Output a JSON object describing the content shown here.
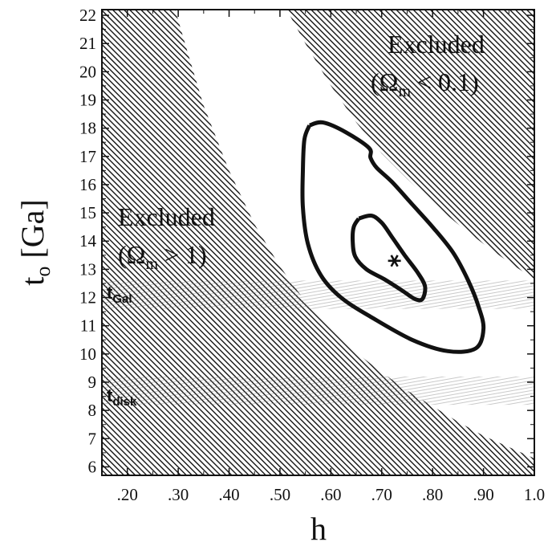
{
  "chart_data": {
    "type": "contour",
    "xlabel": "h",
    "ylabel_main": "t",
    "ylabel_sub": "o",
    "ylabel_unit": "[Ga]",
    "xlim": [
      0.15,
      1.0
    ],
    "ylim": [
      5.7,
      22.2
    ],
    "x_ticks": [
      {
        "value": 0.2,
        "label": ".20"
      },
      {
        "value": 0.3,
        "label": ".30"
      },
      {
        "value": 0.4,
        "label": ".40"
      },
      {
        "value": 0.5,
        "label": ".50"
      },
      {
        "value": 0.6,
        "label": ".60"
      },
      {
        "value": 0.7,
        "label": ".70"
      },
      {
        "value": 0.8,
        "label": ".80"
      },
      {
        "value": 0.9,
        "label": ".90"
      },
      {
        "value": 1.0,
        "label": "1.0"
      }
    ],
    "y_ticks": [
      {
        "value": 6,
        "label": "6"
      },
      {
        "value": 7,
        "label": "7"
      },
      {
        "value": 8,
        "label": "8"
      },
      {
        "value": 9,
        "label": "9"
      },
      {
        "value": 10,
        "label": "10"
      },
      {
        "value": 11,
        "label": "11"
      },
      {
        "value": 12,
        "label": "12"
      },
      {
        "value": 13,
        "label": "13"
      },
      {
        "value": 14,
        "label": "14"
      },
      {
        "value": 15,
        "label": "15"
      },
      {
        "value": 16,
        "label": "16"
      },
      {
        "value": 17,
        "label": "17"
      },
      {
        "value": 18,
        "label": "18"
      },
      {
        "value": 19,
        "label": "19"
      },
      {
        "value": 20,
        "label": "20"
      },
      {
        "value": 21,
        "label": "21"
      },
      {
        "value": 22,
        "label": "22"
      }
    ],
    "excluded_high_omega": {
      "label_word": "Excluded",
      "label_open": "(Ω",
      "label_sub": "m",
      "label_rel": " > 1)",
      "boundary": [
        [
          0.294,
          22.2
        ],
        [
          0.32,
          20.6
        ],
        [
          0.35,
          18.8
        ],
        [
          0.4,
          16.5
        ],
        [
          0.45,
          14.6
        ],
        [
          0.5,
          13.1
        ],
        [
          0.55,
          11.85
        ],
        [
          0.6,
          10.9
        ],
        [
          0.65,
          10.05
        ],
        [
          0.7,
          9.35
        ],
        [
          0.75,
          8.7
        ],
        [
          0.8,
          8.15
        ],
        [
          0.85,
          7.6
        ],
        [
          0.9,
          7.1
        ],
        [
          0.95,
          6.7
        ],
        [
          1.0,
          6.3
        ]
      ]
    },
    "excluded_low_omega": {
      "label_word": "Excluded",
      "label_open": "(Ω",
      "label_sub": "m",
      "label_rel": " < 0.1)",
      "boundary": [
        [
          0.513,
          22.2
        ],
        [
          0.55,
          21.0
        ],
        [
          0.6,
          19.5
        ],
        [
          0.65,
          18.2
        ],
        [
          0.7,
          17.1
        ],
        [
          0.75,
          16.2
        ],
        [
          0.8,
          15.35
        ],
        [
          0.85,
          14.6
        ],
        [
          0.9,
          13.9
        ],
        [
          0.95,
          13.25
        ],
        [
          1.0,
          12.65
        ]
      ]
    },
    "outer_contour": [
      [
        0.558,
        18.1
      ],
      [
        0.585,
        18.2
      ],
      [
        0.63,
        17.85
      ],
      [
        0.675,
        17.3
      ],
      [
        0.678,
        16.95
      ],
      [
        0.69,
        16.6
      ],
      [
        0.72,
        16.1
      ],
      [
        0.76,
        15.3
      ],
      [
        0.8,
        14.5
      ],
      [
        0.84,
        13.6
      ],
      [
        0.87,
        12.6
      ],
      [
        0.89,
        11.7
      ],
      [
        0.9,
        10.9
      ],
      [
        0.885,
        10.2
      ],
      [
        0.83,
        10.1
      ],
      [
        0.76,
        10.5
      ],
      [
        0.68,
        11.3
      ],
      [
        0.62,
        12.0
      ],
      [
        0.58,
        12.8
      ],
      [
        0.555,
        13.9
      ],
      [
        0.545,
        15.2
      ],
      [
        0.545,
        16.5
      ],
      [
        0.548,
        17.6
      ],
      [
        0.558,
        18.1
      ]
    ],
    "inner_contour": [
      [
        0.655,
        14.8
      ],
      [
        0.68,
        14.9
      ],
      [
        0.7,
        14.65
      ],
      [
        0.72,
        14.15
      ],
      [
        0.745,
        13.5
      ],
      [
        0.77,
        12.9
      ],
      [
        0.785,
        12.4
      ],
      [
        0.78,
        11.95
      ],
      [
        0.765,
        11.95
      ],
      [
        0.74,
        12.25
      ],
      [
        0.705,
        12.65
      ],
      [
        0.67,
        13.0
      ],
      [
        0.648,
        13.45
      ],
      [
        0.643,
        14.0
      ],
      [
        0.645,
        14.5
      ],
      [
        0.655,
        14.8
      ]
    ],
    "best_fit": {
      "x": 0.725,
      "y": 13.3
    },
    "age_bands": [
      {
        "label_main": "t",
        "label_sub": "Gal",
        "y_low": 11.6,
        "y_high": 12.6
      },
      {
        "label_main": "t",
        "label_sub": "disk",
        "y_low": 8.2,
        "y_high": 9.2
      }
    ],
    "grid": false,
    "legend": "none"
  }
}
